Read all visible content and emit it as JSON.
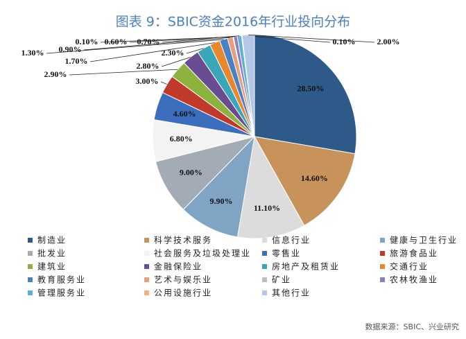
{
  "chart_data": {
    "type": "pie",
    "title": "图表 9：SBIC资金2016年行业投向分布",
    "source": "数据来源：SBIC、兴业研究",
    "categories": [
      "制造业",
      "科学技术服务",
      "信息行业",
      "健康与卫生行业",
      "批发业",
      "社会服务及垃圾处理业",
      "零售业",
      "旅游食品业",
      "建筑业",
      "金融保险业",
      "房地产及租赁业",
      "交通行业",
      "教育服务业",
      "艺术与娱乐业",
      "矿业",
      "农林牧渔业",
      "管理服务业",
      "公用设施行业",
      "其他行业"
    ],
    "values": [
      28.5,
      14.6,
      11.1,
      9.9,
      9.0,
      6.8,
      4.6,
      3.0,
      2.9,
      2.8,
      2.3,
      1.7,
      1.3,
      0.9,
      0.1,
      0.6,
      0.7,
      0.1,
      2.0
    ],
    "value_labels": [
      "28.50%",
      "14.60%",
      "11.10%",
      "9.90%",
      "9.00%",
      "6.80%",
      "4.60%",
      "3.00%",
      "2.90%",
      "2.80%",
      "2.30%",
      "1.70%",
      "1.30%",
      "0.90%",
      "0.10%",
      "0.60%",
      "0.70%",
      "0.10%",
      "2.00%"
    ],
    "colors": [
      "#2d5a88",
      "#c8935a",
      "#dcdcdc",
      "#7fa4c4",
      "#a3acb5",
      "#f3f3f3",
      "#3b6fbe",
      "#c0392b",
      "#8db33f",
      "#6a4c93",
      "#3aa6b9",
      "#e8872e",
      "#4a80c4",
      "#e8a07a",
      "#bdbdbd",
      "#8e7cc3",
      "#5fb0d8",
      "#f4b183",
      "#b4c7e7"
    ]
  }
}
